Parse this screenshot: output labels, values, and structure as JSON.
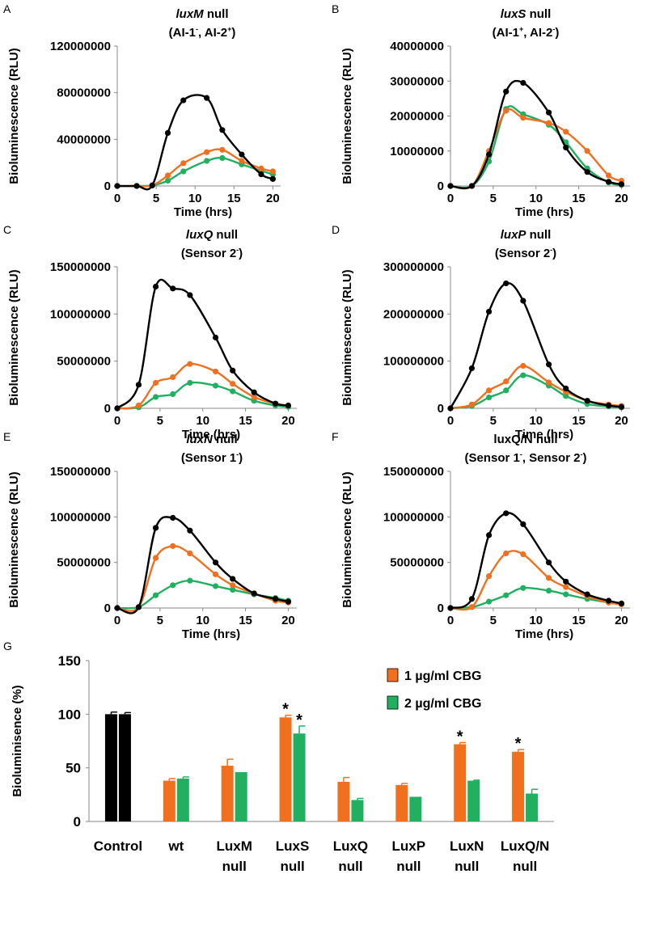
{
  "chart_data": [
    {
      "panel": "A",
      "type": "line",
      "title_gene": "luxM",
      "title_rest": " null",
      "subtitle": [
        {
          "t": "(AI-1"
        },
        {
          "t": "-",
          "sup": true
        },
        {
          "t": ", AI-2"
        },
        {
          "t": "+",
          "sup": true
        },
        {
          "t": ")"
        }
      ],
      "xlabel": "Time (hrs)",
      "ylabel": "Bioluminescence (RLU)",
      "xlim": [
        0,
        21
      ],
      "ylim": [
        0,
        120000000
      ],
      "xticks": [
        0,
        5,
        10,
        15,
        20
      ],
      "yticks": [
        0,
        40000000,
        80000000,
        120000000
      ],
      "series": [
        {
          "name": "Control",
          "color": "#000000",
          "x": [
            0,
            2.5,
            4.5,
            6.5,
            8.5,
            11.5,
            13.5,
            16,
            18.5,
            20
          ],
          "y": [
            0,
            0,
            500000,
            45500000,
            73500000,
            75500000,
            48000000,
            27000000,
            10000000,
            6000000
          ]
        },
        {
          "name": "1 µg/ml CBG",
          "color": "#f07020",
          "x": [
            0,
            2.5,
            4.5,
            6.5,
            8.5,
            11.5,
            13.5,
            16,
            18.5,
            20
          ],
          "y": [
            0,
            0,
            500000,
            9000000,
            19500000,
            29000000,
            31000000,
            21500000,
            15000000,
            12500000
          ]
        },
        {
          "name": "2 µg/ml CBG",
          "color": "#20b060",
          "x": [
            0,
            2.5,
            4.5,
            6.5,
            8.5,
            11.5,
            13.5,
            16,
            18.5,
            20
          ],
          "y": [
            0,
            0,
            500000,
            4500000,
            12500000,
            21500000,
            24000000,
            18500000,
            13000000,
            10000000
          ]
        }
      ]
    },
    {
      "panel": "B",
      "type": "line",
      "title_gene": "luxS",
      "title_rest": " null",
      "subtitle": [
        {
          "t": "(AI-1"
        },
        {
          "t": "+",
          "sup": true
        },
        {
          "t": ", AI-2"
        },
        {
          "t": "-",
          "sup": true
        },
        {
          "t": ")"
        }
      ],
      "xlabel": "Time (hrs)",
      "ylabel": "Bioluminescence (RLU)",
      "xlim": [
        0,
        21
      ],
      "ylim": [
        0,
        40000000
      ],
      "xticks": [
        0,
        5,
        10,
        15,
        20
      ],
      "yticks": [
        0,
        10000000,
        20000000,
        30000000,
        40000000
      ],
      "series": [
        {
          "name": "Control",
          "color": "#000000",
          "x": [
            0,
            2.5,
            4.5,
            6.5,
            8.5,
            11.5,
            13.5,
            16,
            18.5,
            20
          ],
          "y": [
            0,
            0,
            9000000,
            27000000,
            29500000,
            21000000,
            11000000,
            4000000,
            1200000,
            500000
          ]
        },
        {
          "name": "1 µg/ml CBG",
          "color": "#f07020",
          "x": [
            0,
            2.5,
            4.5,
            6.5,
            8.5,
            11.5,
            13.5,
            16,
            18.5,
            20
          ],
          "y": [
            0,
            0,
            10000000,
            21500000,
            19500000,
            18000000,
            15500000,
            10000000,
            3000000,
            1500000
          ]
        },
        {
          "name": "2 µg/ml CBG",
          "color": "#20b060",
          "x": [
            0,
            2.5,
            4.5,
            6.5,
            8.5,
            11.5,
            13.5,
            16,
            18.5,
            20
          ],
          "y": [
            0,
            0,
            7000000,
            22000000,
            20500000,
            17500000,
            12500000,
            5000000,
            1000000,
            300000
          ]
        }
      ]
    },
    {
      "panel": "C",
      "type": "line",
      "title_gene": "luxQ",
      "title_rest": " null",
      "subtitle": [
        {
          "t": "(Sensor 2"
        },
        {
          "t": "-",
          "sup": true
        },
        {
          "t": ")"
        }
      ],
      "xlabel": "Time (hrs)",
      "ylabel": "Bioluminescence (RLU)",
      "xlim": [
        0,
        21
      ],
      "ylim": [
        0,
        150000000
      ],
      "xticks": [
        0,
        5,
        10,
        15,
        20
      ],
      "yticks": [
        0,
        50000000,
        100000000,
        150000000
      ],
      "series": [
        {
          "name": "Control",
          "color": "#000000",
          "x": [
            0,
            2.5,
            4.5,
            6.5,
            8.5,
            11.5,
            13.5,
            16,
            18.5,
            20
          ],
          "y": [
            0,
            25000000,
            129000000,
            127000000,
            120000000,
            75000000,
            40000000,
            17000000,
            5000000,
            3000000
          ]
        },
        {
          "name": "1 µg/ml CBG",
          "color": "#f07020",
          "x": [
            0,
            2.5,
            4.5,
            6.5,
            8.5,
            11.5,
            13.5,
            16,
            18.5,
            20
          ],
          "y": [
            0,
            3000000,
            27000000,
            33000000,
            47000000,
            39000000,
            26000000,
            12000000,
            5000000,
            3000000
          ]
        },
        {
          "name": "2 µg/ml CBG",
          "color": "#20b060",
          "x": [
            0,
            2.5,
            4.5,
            6.5,
            8.5,
            11.5,
            13.5,
            16,
            18.5,
            20
          ],
          "y": [
            0,
            1000000,
            12000000,
            15000000,
            27000000,
            24000000,
            18000000,
            8000000,
            3000000,
            1500000
          ]
        }
      ]
    },
    {
      "panel": "D",
      "type": "line",
      "title_gene": "luxP",
      "title_rest": " null",
      "subtitle": [
        {
          "t": "(Sensor 2"
        },
        {
          "t": "-",
          "sup": true
        },
        {
          "t": ")"
        }
      ],
      "xlabel": "Time (hrs)",
      "ylabel": "Bioluminescence (RLU)",
      "xlim": [
        0,
        21
      ],
      "ylim": [
        0,
        300000000
      ],
      "xticks": [
        0,
        5,
        10,
        15,
        20
      ],
      "yticks": [
        0,
        100000000,
        200000000,
        300000000
      ],
      "series": [
        {
          "name": "Control",
          "color": "#000000",
          "x": [
            0,
            2.5,
            4.5,
            6.5,
            8.5,
            11.5,
            13.5,
            16,
            18.5,
            20
          ],
          "y": [
            0,
            85000000,
            205000000,
            265000000,
            228000000,
            93000000,
            42000000,
            16000000,
            6000000,
            3000000
          ]
        },
        {
          "name": "1 µg/ml CBG",
          "color": "#f07020",
          "x": [
            0,
            2.5,
            4.5,
            6.5,
            8.5,
            11.5,
            13.5,
            16,
            18.5,
            20
          ],
          "y": [
            0,
            8000000,
            38000000,
            57000000,
            90000000,
            55000000,
            35000000,
            16000000,
            8000000,
            5000000
          ]
        },
        {
          "name": "2 µg/ml CBG",
          "color": "#20b060",
          "x": [
            0,
            2.5,
            4.5,
            6.5,
            8.5,
            11.5,
            13.5,
            16,
            18.5,
            20
          ],
          "y": [
            0,
            5000000,
            23000000,
            38000000,
            70000000,
            48000000,
            26000000,
            9000000,
            4000000,
            2000000
          ]
        }
      ]
    },
    {
      "panel": "E",
      "type": "line",
      "title_gene": "luxN",
      "title_rest": " null",
      "subtitle": [
        {
          "t": "(Sensor 1"
        },
        {
          "t": "-",
          "sup": true
        },
        {
          "t": ")"
        }
      ],
      "xlabel": "Time (hrs)",
      "ylabel": "Bioluminescence (RLU)",
      "xlim": [
        0,
        21
      ],
      "ylim": [
        0,
        150000000
      ],
      "xticks": [
        0,
        5,
        10,
        15,
        20
      ],
      "yticks": [
        0,
        50000000,
        100000000,
        150000000
      ],
      "series": [
        {
          "name": "Control",
          "color": "#000000",
          "x": [
            0,
            2.5,
            4.5,
            6.5,
            8.5,
            11.5,
            13.5,
            16,
            18.5,
            20
          ],
          "y": [
            0,
            1000000,
            88000000,
            99000000,
            85000000,
            50000000,
            32000000,
            16000000,
            10000000,
            7000000
          ]
        },
        {
          "name": "1 µg/ml CBG",
          "color": "#f07020",
          "x": [
            0,
            2.5,
            4.5,
            6.5,
            8.5,
            11.5,
            13.5,
            16,
            18.5,
            20
          ],
          "y": [
            0,
            1000000,
            55000000,
            68000000,
            60000000,
            37000000,
            25000000,
            16000000,
            8000000,
            6000000
          ]
        },
        {
          "name": "2 µg/ml CBG",
          "color": "#20b060",
          "x": [
            0,
            2.5,
            4.5,
            6.5,
            8.5,
            11.5,
            13.5,
            16,
            18.5,
            20
          ],
          "y": [
            0,
            1000000,
            14000000,
            25000000,
            30000000,
            24000000,
            20000000,
            15000000,
            11000000,
            8000000
          ]
        }
      ]
    },
    {
      "panel": "F",
      "type": "line",
      "title_gene": "",
      "title_rest": "luxQ/N null",
      "subtitle": [
        {
          "t": "(Sensor 1"
        },
        {
          "t": "-",
          "sup": true
        },
        {
          "t": ", Sensor 2"
        },
        {
          "t": "-",
          "sup": true
        },
        {
          "t": ")"
        }
      ],
      "xlabel": "Time (hrs)",
      "ylabel": "Bioluminescence (RLU)",
      "xlim": [
        0,
        21
      ],
      "ylim": [
        0,
        150000000
      ],
      "xticks": [
        0,
        5,
        10,
        15,
        20
      ],
      "yticks": [
        0,
        50000000,
        100000000,
        150000000
      ],
      "series": [
        {
          "name": "Control",
          "color": "#000000",
          "x": [
            0,
            2.5,
            4.5,
            6.5,
            8.5,
            11.5,
            13.5,
            16,
            18.5,
            20
          ],
          "y": [
            0,
            10000000,
            80000000,
            104000000,
            92000000,
            50000000,
            29000000,
            15000000,
            8000000,
            5000000
          ]
        },
        {
          "name": "1 µg/ml CBG",
          "color": "#f07020",
          "x": [
            0,
            2.5,
            4.5,
            6.5,
            8.5,
            11.5,
            13.5,
            16,
            18.5,
            20
          ],
          "y": [
            0,
            1000000,
            35000000,
            60000000,
            59000000,
            33000000,
            23000000,
            13000000,
            6000000,
            4000000
          ]
        },
        {
          "name": "2 µg/ml CBG",
          "color": "#20b060",
          "x": [
            0,
            2.5,
            4.5,
            6.5,
            8.5,
            11.5,
            13.5,
            16,
            18.5,
            20
          ],
          "y": [
            0,
            1000000,
            7000000,
            14000000,
            22000000,
            19000000,
            15000000,
            10000000,
            6000000,
            4000000
          ]
        }
      ]
    },
    {
      "panel": "G",
      "type": "bar",
      "ylabel": "Bioluminisence (%)",
      "ylim": [
        0,
        150
      ],
      "yticks": [
        0,
        50,
        100,
        150
      ],
      "categories": [
        [
          "Control"
        ],
        [
          "wt"
        ],
        [
          "LuxM",
          "null"
        ],
        [
          "LuxS",
          "null"
        ],
        [
          "LuxQ",
          "null"
        ],
        [
          "LuxP",
          "null"
        ],
        [
          "LuxN",
          "null"
        ],
        [
          "LuxQ/N",
          "null"
        ]
      ],
      "series": [
        {
          "name": "1 µg/ml CBG",
          "color": "#f07020",
          "values": [
            100,
            38,
            52,
            97,
            37,
            34,
            72,
            65
          ],
          "errors": [
            2,
            2,
            6,
            2,
            4,
            1.5,
            1.5,
            2
          ]
        },
        {
          "name": "2 µg/ml CBG",
          "color": "#20b060",
          "values": [
            100,
            40,
            46,
            82,
            20,
            23,
            38,
            26
          ],
          "errors": [
            1.5,
            1.5,
            0,
            7,
            1.5,
            0,
            0.5,
            4
          ]
        }
      ],
      "control_color": "#000000",
      "significance": [
        {
          "category": 3,
          "series": 0,
          "label": "*"
        },
        {
          "category": 3,
          "series": 1,
          "label": "*"
        },
        {
          "category": 6,
          "series": 0,
          "label": "*"
        },
        {
          "category": 7,
          "series": 0,
          "label": "*"
        }
      ],
      "legend": [
        "1 µg/ml CBG",
        "2 µg/ml CBG"
      ]
    }
  ]
}
